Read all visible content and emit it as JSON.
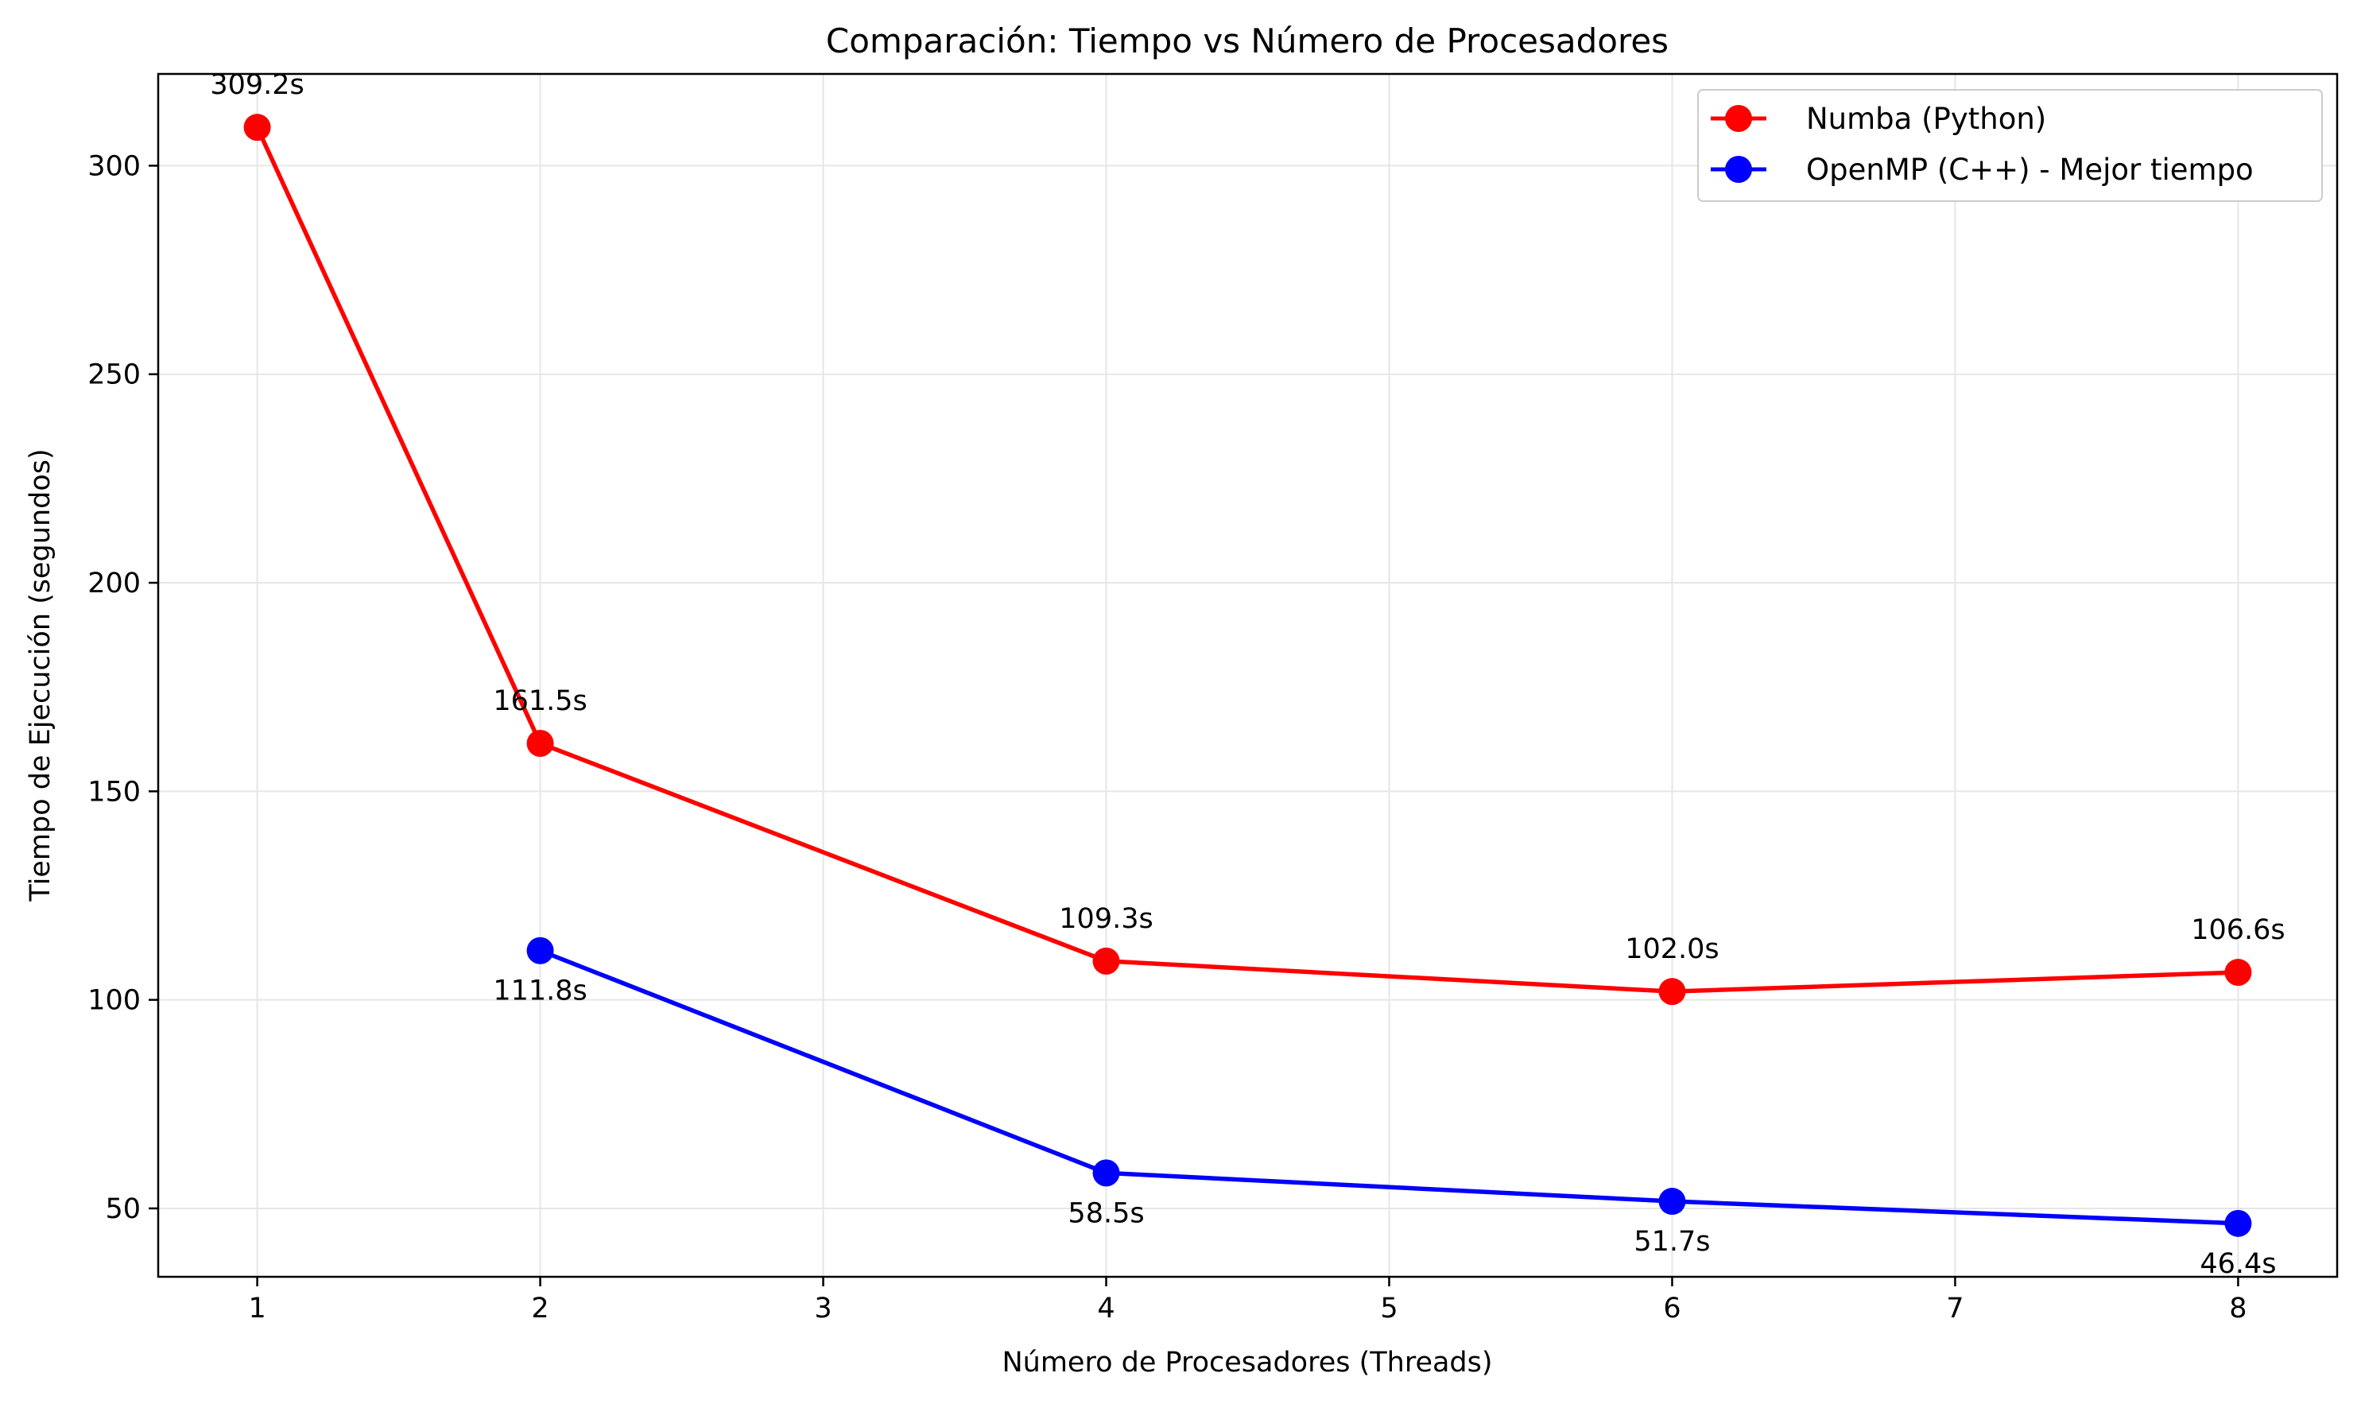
{
  "chart_data": {
    "type": "line",
    "title": "Comparación: Tiempo vs Número de Procesadores",
    "xlabel": "Número de Procesadores (Threads)",
    "ylabel": "Tiempo de Ejecución (segundos)",
    "xlim": [
      0.65,
      8.35
    ],
    "ylim": [
      33.6,
      322.0
    ],
    "xticks": [
      1,
      2,
      3,
      4,
      5,
      6,
      7,
      8
    ],
    "yticks": [
      50,
      100,
      150,
      200,
      250,
      300
    ],
    "grid": true,
    "legend_position": "top-right",
    "series": [
      {
        "name": "Numba (Python)",
        "color": "#ff0000",
        "marker": "circle",
        "x": [
          1,
          2,
          4,
          6,
          8
        ],
        "y": [
          309.2,
          161.5,
          109.3,
          102.0,
          106.6
        ],
        "labels": [
          "309.2s",
          "161.5s",
          "109.3s",
          "102.0s",
          "106.6s"
        ],
        "label_position": "above"
      },
      {
        "name": "OpenMP (C++) - Mejor tiempo",
        "color": "#0000ff",
        "marker": "circle",
        "x": [
          2,
          4,
          6,
          8
        ],
        "y": [
          111.8,
          58.5,
          51.7,
          46.4
        ],
        "labels": [
          "111.8s",
          "58.5s",
          "51.7s",
          "46.4s"
        ],
        "label_position": "below"
      }
    ]
  }
}
